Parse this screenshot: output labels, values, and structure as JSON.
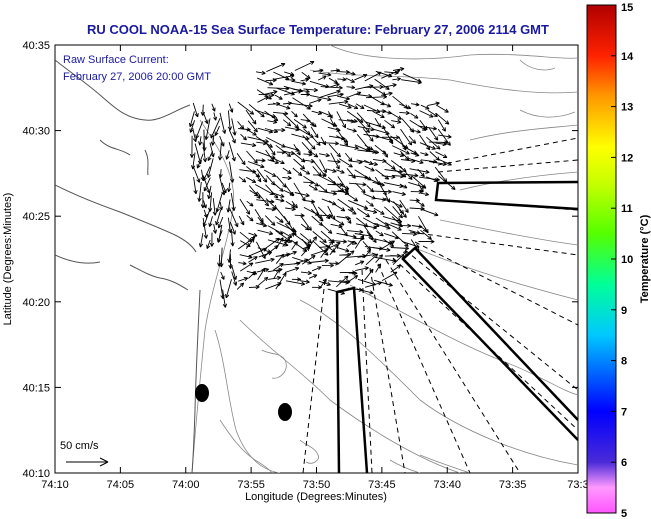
{
  "title": "RU COOL  NOAA-15  Sea Surface Temperature:  February 27, 2006 2114 GMT",
  "current_label": "Raw Surface Current:",
  "current_time": "February 27, 2006 20:00 GMT",
  "scale_label": "50 cm/s",
  "axes": {
    "xlabel": "Longitude (Degrees:Minutes)",
    "ylabel": "Latitude (Degrees:Minutes)",
    "x_ticks": [
      "74:10",
      "74:05",
      "74:00",
      "73:55",
      "73:50",
      "73:45",
      "73:40",
      "73:35",
      "73:3"
    ],
    "y_ticks": [
      "40:35",
      "40:30",
      "40:25",
      "40:20",
      "40:15",
      "40:10"
    ]
  },
  "colorbar": {
    "label": "Temperature (°C)",
    "min": 5,
    "max": 15,
    "ticks": [
      "15",
      "14",
      "13",
      "12",
      "11",
      "10",
      "9",
      "8",
      "7",
      "6",
      "5"
    ]
  },
  "colors": {
    "title": "#1a1aa0",
    "contour": "#888888",
    "vector": "#000000"
  },
  "markers": [
    {
      "name": "station-1",
      "lon": "73:59",
      "lat": "40:14.6"
    },
    {
      "name": "station-2",
      "lon": "73:52",
      "lat": "40:13.4"
    }
  ]
}
